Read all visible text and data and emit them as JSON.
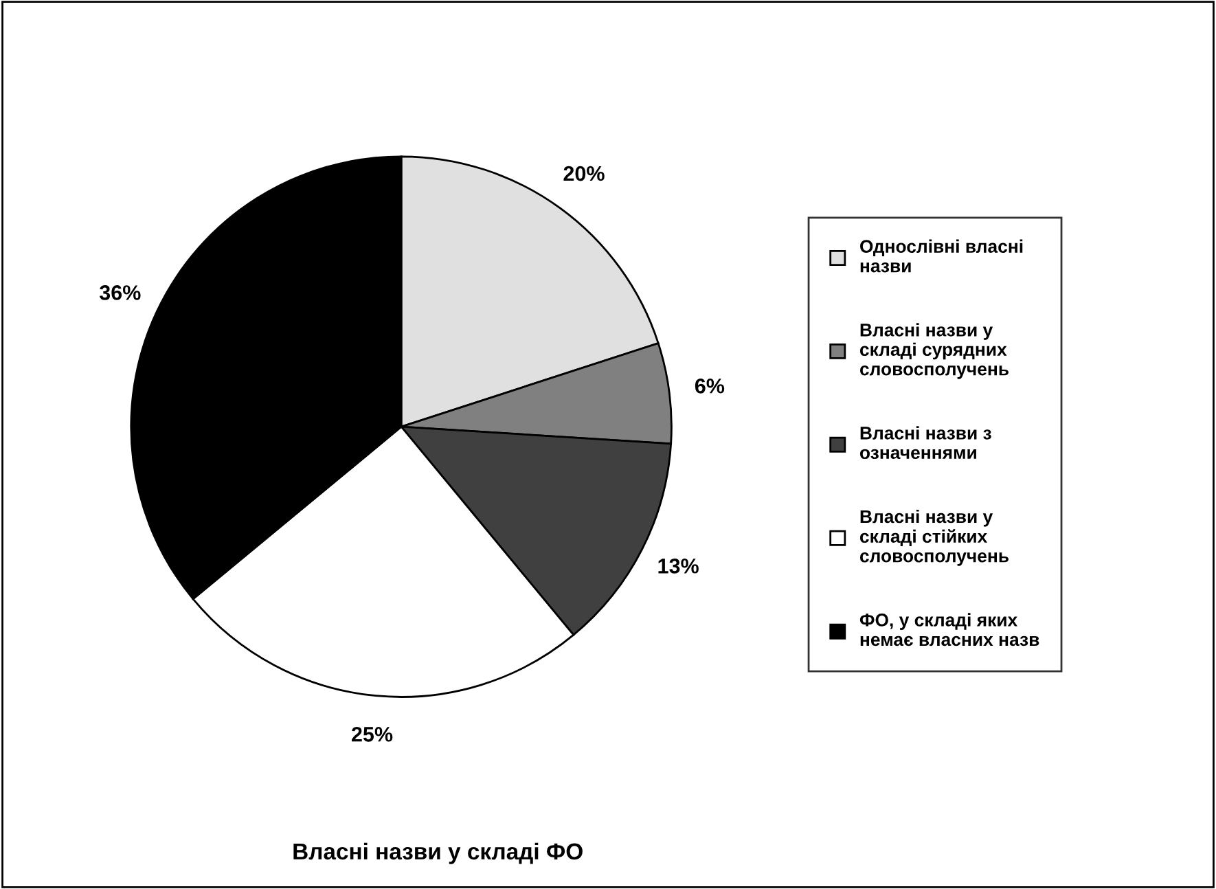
{
  "chart_data": {
    "type": "pie",
    "title": "Власні назви у складі ФО",
    "categories": [
      "Однослівні власні назви",
      "Власні назви у складі сурядних словосполучень",
      "Власні назви з означеннями",
      "Власні назви у складі стійких словосполучень",
      "ФО, у складі яких немає власних назв"
    ],
    "values": [
      20,
      6,
      13,
      25,
      36
    ],
    "value_labels": [
      "20%",
      "6%",
      "13%",
      "25%",
      "36%"
    ],
    "colors": [
      "#e0e0e0",
      "#808080",
      "#404040",
      "#ffffff",
      "#000000"
    ],
    "legend": "right"
  }
}
